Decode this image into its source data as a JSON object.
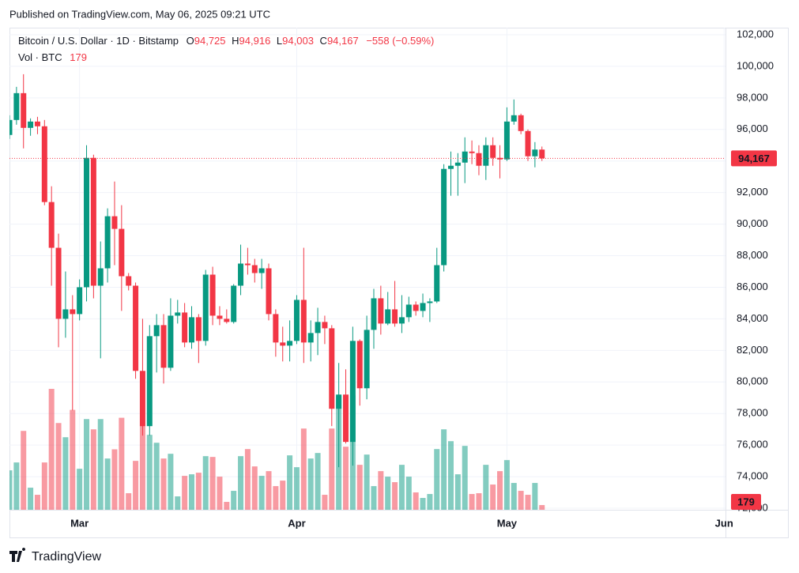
{
  "header": {
    "published": "Published on TradingView.com, May 06, 2025 09:21 UTC"
  },
  "chart_data": {
    "type": "candlestick",
    "symbol": "Bitcoin / U.S. Dollar · 1D · Bitstamp",
    "ohlc_legend": [
      {
        "key": "O",
        "value": "94,725"
      },
      {
        "key": "H",
        "value": "94,916"
      },
      {
        "key": "L",
        "value": "94,003"
      },
      {
        "key": "C",
        "value": "94,167"
      }
    ],
    "change": "−558 (−0.59%)",
    "volume_legend": {
      "label": "Vol · BTC",
      "value": "179"
    },
    "categories": [
      null,
      null,
      null,
      null,
      null,
      null,
      null,
      null,
      null,
      null,
      null,
      null,
      null,
      null,
      null,
      null,
      null,
      null,
      null,
      null,
      null,
      null,
      null,
      null,
      null,
      null,
      null,
      null,
      null,
      null,
      null,
      null,
      null,
      null,
      null,
      null,
      null,
      null,
      null,
      null,
      null,
      null,
      null,
      null,
      null,
      null,
      null,
      null,
      null,
      null,
      null,
      null,
      null,
      null,
      null,
      null,
      null,
      null,
      null,
      null,
      null,
      null,
      null,
      null,
      null,
      null,
      null,
      null,
      null,
      null,
      null,
      null,
      null,
      null,
      null,
      null,
      null
    ],
    "open": [
      95650,
      96600,
      98300,
      96100,
      96500,
      96200,
      91400,
      88500,
      84000,
      84600,
      84300,
      86000,
      94200,
      86100,
      87200,
      90500,
      89700,
      86700,
      86100,
      80700,
      77200,
      82900,
      83600,
      80900,
      84200,
      84400,
      82500,
      84100,
      82600,
      86800,
      84200,
      84000,
      83800,
      86100,
      87500,
      87400,
      86900,
      87200,
      84300,
      82500,
      82300,
      82600,
      85200,
      82500,
      83100,
      83800,
      83400,
      78300,
      79200,
      76200,
      82600,
      79600,
      83300,
      85300,
      83700,
      84600,
      83700,
      84100,
      84900,
      84500,
      85000,
      85100,
      87400,
      93500,
      93700,
      93900,
      94600,
      94500,
      93700,
      95000,
      94200,
      94100,
      96500,
      96900,
      95900,
      94300,
      94725
    ],
    "high": [
      96900,
      98700,
      99500,
      96700,
      96800,
      96600,
      92400,
      89400,
      87000,
      85500,
      86500,
      95000,
      94400,
      88900,
      91000,
      92700,
      91200,
      86900,
      86300,
      84000,
      83600,
      84300,
      84300,
      85300,
      85200,
      85000,
      84800,
      84300,
      87100,
      87300,
      84800,
      84600,
      86200,
      88700,
      88500,
      87800,
      87800,
      87500,
      84600,
      83500,
      83900,
      85500,
      88500,
      83900,
      84700,
      84200,
      83600,
      81200,
      80800,
      83500,
      82700,
      84200,
      85900,
      86100,
      85700,
      86400,
      85500,
      85400,
      85100,
      85600,
      85300,
      88500,
      93800,
      94600,
      94500,
      95500,
      95300,
      95000,
      95500,
      95500,
      95000,
      97400,
      97900,
      97000,
      96000,
      95200,
      94916
    ],
    "low": [
      95400,
      96300,
      94800,
      95600,
      95700,
      91200,
      86100,
      82200,
      82800,
      78200,
      83900,
      85100,
      85300,
      81500,
      86300,
      87400,
      84500,
      85800,
      80200,
      76600,
      76600,
      80600,
      79900,
      80700,
      83700,
      82200,
      82100,
      81200,
      82300,
      83600,
      83600,
      83700,
      83700,
      85500,
      86800,
      86300,
      85900,
      83900,
      81600,
      81300,
      81300,
      82400,
      81200,
      81300,
      81700,
      82400,
      77200,
      74600,
      76100,
      74700,
      78500,
      78900,
      82100,
      83000,
      83600,
      83500,
      83100,
      83800,
      84200,
      84100,
      83800,
      85000,
      87000,
      91800,
      91800,
      92600,
      93800,
      93100,
      92800,
      93700,
      92900,
      94000,
      96300,
      95700,
      94000,
      93600,
      94003
    ],
    "close": [
      96600,
      98300,
      96100,
      96500,
      96200,
      91400,
      88500,
      84000,
      84600,
      84300,
      86000,
      94200,
      86100,
      87200,
      90500,
      89700,
      86700,
      86100,
      80700,
      77200,
      82900,
      83600,
      80900,
      84200,
      84400,
      82500,
      84100,
      82600,
      86800,
      84200,
      84000,
      83800,
      86100,
      87500,
      87400,
      86900,
      87200,
      84300,
      82500,
      82300,
      82600,
      85200,
      82500,
      83100,
      83800,
      83400,
      78300,
      79200,
      76200,
      82600,
      79600,
      83300,
      85300,
      83700,
      84600,
      83700,
      84100,
      84900,
      84500,
      85000,
      85100,
      87400,
      93500,
      93700,
      93900,
      94600,
      94500,
      93700,
      95000,
      94200,
      94100,
      96500,
      96900,
      95900,
      94300,
      94725,
      94167
    ],
    "volume": [
      1500,
      1800,
      3000,
      840,
      570,
      1800,
      4600,
      3300,
      2760,
      3800,
      1560,
      3450,
      3060,
      3450,
      1950,
      2300,
      3500,
      630,
      1860,
      3200,
      2850,
      2550,
      1950,
      2130,
      510,
      1290,
      1350,
      1410,
      2040,
      2010,
      1260,
      300,
      720,
      2040,
      2310,
      1650,
      1290,
      1470,
      900,
      1110,
      2070,
      1620,
      3090,
      1950,
      2160,
      570,
      3090,
      4350,
      2400,
      4350,
      1710,
      2100,
      900,
      1470,
      1260,
      1050,
      1710,
      1260,
      660,
      450,
      600,
      2310,
      3060,
      2610,
      1350,
      2430,
      600,
      630,
      1710,
      960,
      1470,
      1890,
      1020,
      720,
      570,
      1020,
      179
    ],
    "up_color": "#089981",
    "down_color": "#f23645",
    "ylim": [
      71900,
      102450
    ],
    "yticks": [
      {
        "value": 72000,
        "label": "72,000"
      },
      {
        "value": 74000,
        "label": "74,000"
      },
      {
        "value": 76000,
        "label": "76,000"
      },
      {
        "value": 78000,
        "label": "78,000"
      },
      {
        "value": 80000,
        "label": "80,000"
      },
      {
        "value": 82000,
        "label": "82,000"
      },
      {
        "value": 84000,
        "label": "84,000"
      },
      {
        "value": 86000,
        "label": "86,000"
      },
      {
        "value": 88000,
        "label": "88,000"
      },
      {
        "value": 90000,
        "label": "90,000"
      },
      {
        "value": 92000,
        "label": "92,000"
      },
      {
        "value": 94000,
        "label": "94,000"
      },
      {
        "value": 96000,
        "label": "96,000"
      },
      {
        "value": 98000,
        "label": "98,000"
      },
      {
        "value": 100000,
        "label": "100,000"
      },
      {
        "value": 102000,
        "label": "102,000"
      }
    ],
    "xlim": [
      0,
      102.2
    ],
    "xticks": [
      {
        "value": 10,
        "label": "Mar"
      },
      {
        "value": 41,
        "label": "Apr"
      },
      {
        "value": 71,
        "label": "May"
      },
      {
        "value": 102,
        "label": "Jun"
      }
    ],
    "last_price_label": "94,167",
    "last_volume_label": "179",
    "grid": true
  },
  "footer": {
    "logo": "TradingView"
  }
}
